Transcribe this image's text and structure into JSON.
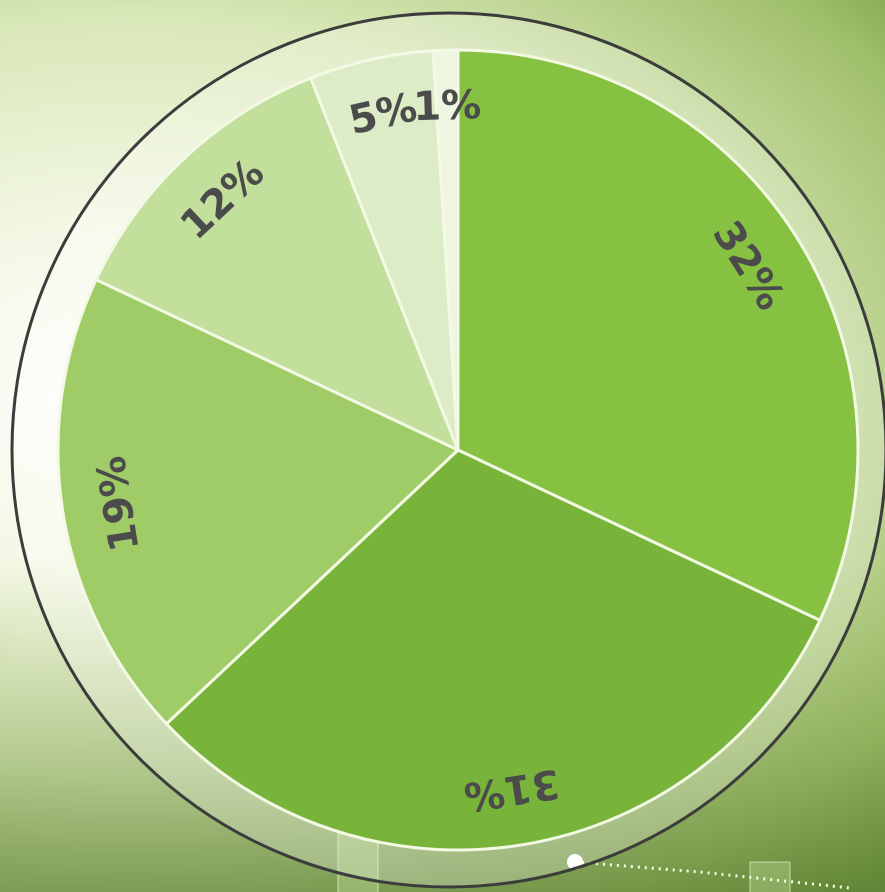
{
  "chart_data": {
    "type": "pie",
    "values": [
      32,
      31,
      19,
      12,
      5,
      1
    ],
    "value_labels": [
      "32%",
      "31%",
      "19%",
      "12%",
      "5%",
      "1%"
    ],
    "colors": [
      "#86c142",
      "#79b43a",
      "#a0cc68",
      "#c3df9c",
      "#dcecc6",
      "#eef6e2"
    ]
  }
}
